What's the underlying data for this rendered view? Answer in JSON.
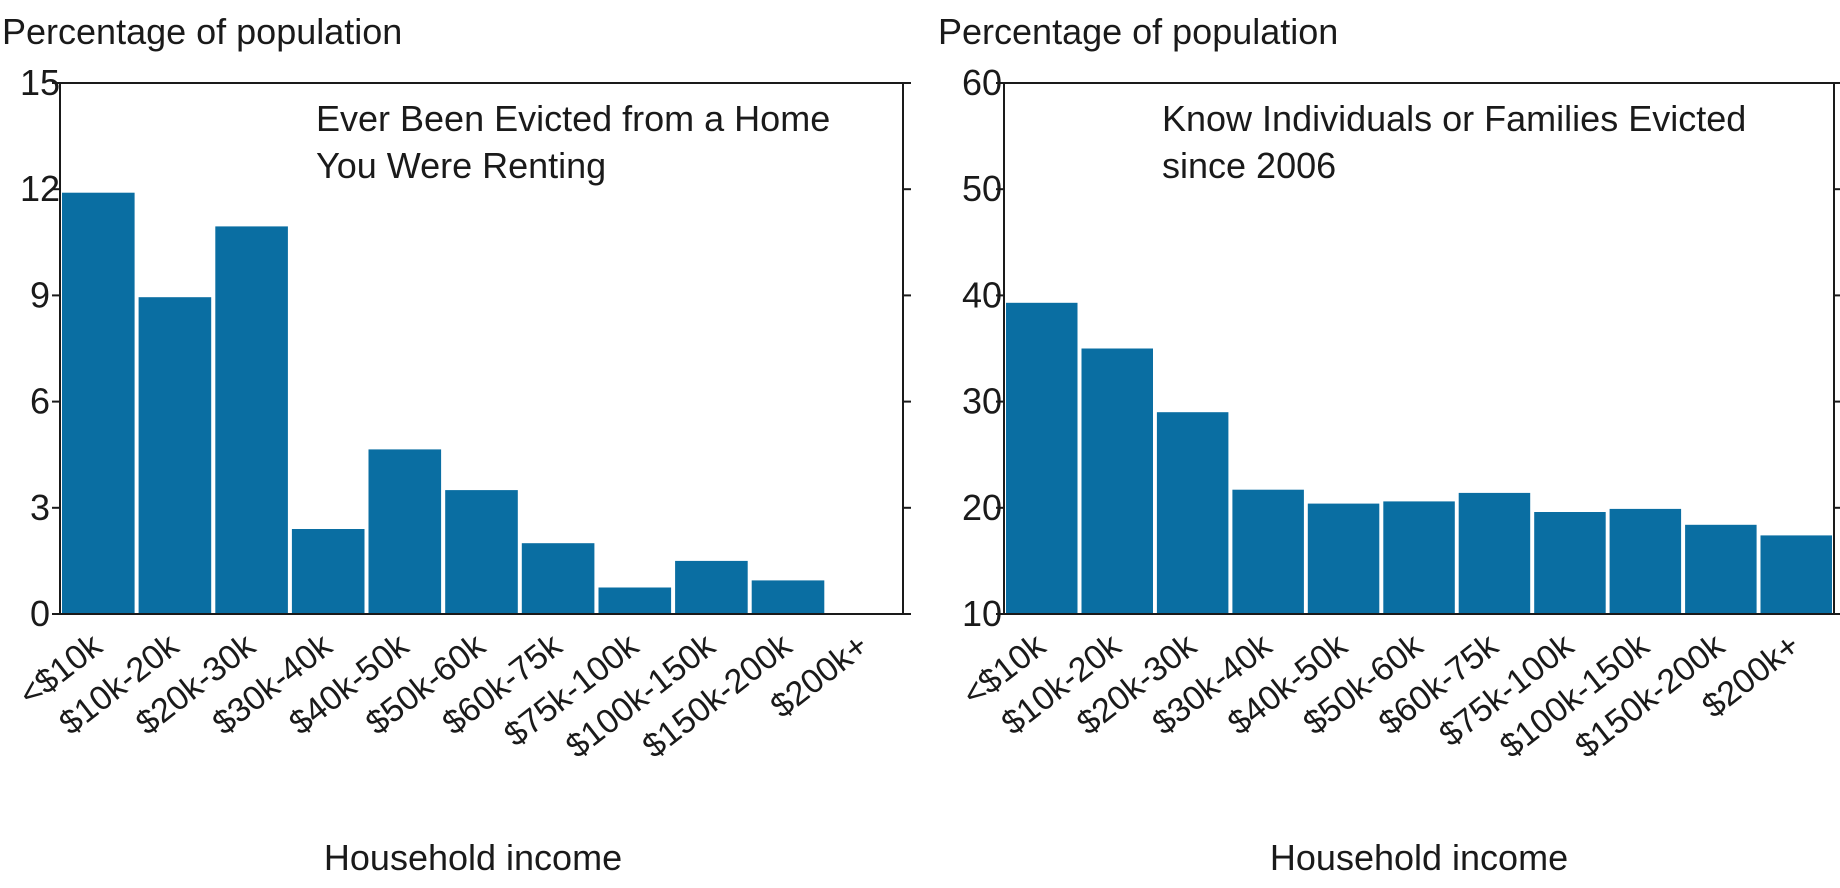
{
  "colors": {
    "bar": "#0a6ea2",
    "axis": "#1a1a1a",
    "background": "#ffffff"
  },
  "chart_data": [
    {
      "type": "bar",
      "title": "Ever Been Evicted from a Home You Were Renting",
      "title_lines": [
        "Ever Been Evicted from a Home",
        "You Were Renting"
      ],
      "ylabel": "Percentage of population",
      "xlabel": "Household income",
      "ylim": [
        0,
        15
      ],
      "yticks": [
        0,
        3,
        6,
        9,
        12,
        15
      ],
      "categories": [
        "<$10k",
        "$10k-20k",
        "$20k-30k",
        "$30k-40k",
        "$40k-50k",
        "$50k-60k",
        "$60k-75k",
        "$75k-100k",
        "$100k-150k",
        "$150k-200k",
        "$200k+"
      ],
      "values": [
        11.9,
        8.95,
        10.95,
        2.4,
        4.65,
        3.5,
        2.0,
        0.75,
        1.5,
        0.95,
        0
      ],
      "grid": false
    },
    {
      "type": "bar",
      "title": "Know Individuals or Families Evicted since 2006",
      "title_lines": [
        "Know Individuals or Families Evicted",
        "since 2006"
      ],
      "ylabel": "Percentage of population",
      "xlabel": "Household income",
      "ylim": [
        10,
        60
      ],
      "yticks": [
        10,
        20,
        30,
        40,
        50,
        60
      ],
      "categories": [
        "<$10k",
        "$10k-20k",
        "$20k-30k",
        "$30k-40k",
        "$40k-50k",
        "$50k-60k",
        "$60k-75k",
        "$75k-100k",
        "$100k-150k",
        "$150k-200k",
        "$200k+"
      ],
      "values": [
        39.3,
        35.0,
        29.0,
        21.7,
        20.4,
        20.6,
        21.4,
        19.6,
        19.9,
        18.4,
        17.4
      ],
      "grid": false
    }
  ]
}
